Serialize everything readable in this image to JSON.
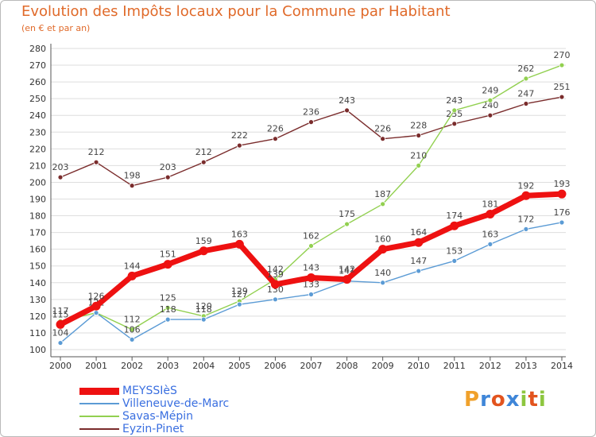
{
  "colors": {
    "title": "#e06a2a",
    "axis": "#555555",
    "grid": "#dedede",
    "legend_text": "#3a6fe0"
  },
  "logo": {
    "letters": [
      "P",
      "r",
      "o",
      "x",
      "i",
      "t",
      "i"
    ],
    "colors": [
      "#f0a12b",
      "#3f86d8",
      "#e2541e",
      "#3f86d8",
      "#8dc63f",
      "#e2541e",
      "#8dc63f"
    ]
  },
  "chart_data": {
    "type": "line",
    "title": "Evolution des Impôts locaux pour la Commune par Habitant",
    "subtitle": "(en € et par an)",
    "xlabel": "",
    "ylabel": "",
    "x": [
      2000,
      2001,
      2002,
      2003,
      2004,
      2005,
      2006,
      2007,
      2008,
      2009,
      2010,
      2011,
      2012,
      2013,
      2014
    ],
    "ylim": [
      100,
      280
    ],
    "yticks": [
      100,
      110,
      120,
      130,
      140,
      150,
      160,
      170,
      180,
      190,
      200,
      210,
      220,
      230,
      240,
      250,
      260,
      270,
      280
    ],
    "grid": true,
    "legend_position": "bottom-left",
    "series": [
      {
        "name": "MEYSSIèS",
        "color": "#ee1111",
        "values": [
          115,
          126,
          144,
          151,
          159,
          163,
          139,
          143,
          142,
          160,
          164,
          174,
          181,
          192,
          193
        ]
      },
      {
        "name": "Villeneuve-de-Marc",
        "color": "#5b9bd5",
        "values": [
          104,
          122,
          106,
          118,
          118,
          127,
          130,
          133,
          141,
          140,
          147,
          153,
          163,
          172,
          176
        ]
      },
      {
        "name": "Savas-Mépin",
        "color": "#92d050",
        "values": [
          117,
          122,
          112,
          125,
          120,
          129,
          142,
          162,
          175,
          187,
          210,
          243,
          249,
          262,
          270
        ]
      },
      {
        "name": "Eyzin-Pinet",
        "color": "#7a2c2c",
        "values": [
          203,
          212,
          198,
          203,
          212,
          222,
          226,
          236,
          243,
          226,
          228,
          235,
          240,
          247,
          251
        ]
      }
    ]
  }
}
